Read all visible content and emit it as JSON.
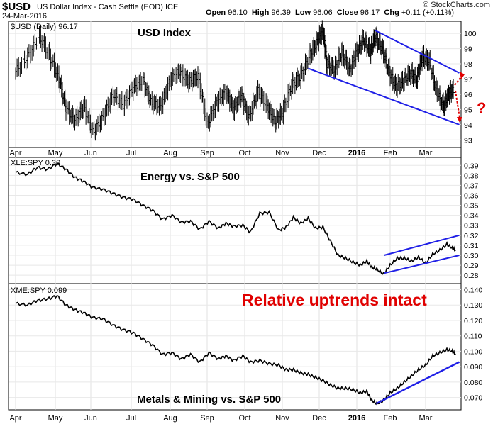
{
  "header": {
    "symbol": "$USD",
    "name": "US Dollar Index - Cash Settle (EOD) ICE",
    "date": "24-Mar-2016",
    "open_label": "Open",
    "open": "96.10",
    "high_label": "High",
    "high": "96.39",
    "low_label": "Low",
    "low": "96.06",
    "close_label": "Close",
    "close": "96.17",
    "chg_label": "Chg",
    "chg": "+0.11 (+0.11%)",
    "brand": "© StockCharts.com"
  },
  "x_labels": [
    "Apr",
    "May",
    "Jun",
    "Jul",
    "Aug",
    "Sep",
    "Oct",
    "Nov",
    "Dec",
    "2016",
    "Feb",
    "Mar"
  ],
  "chart_data": [
    {
      "type": "ohlc",
      "legend": "$USD (Daily) 96.17",
      "title": "USD Index",
      "ylim": [
        92.5,
        100.8
      ],
      "ticks": [
        "93",
        "94",
        "95",
        "96",
        "97",
        "98",
        "99",
        "100"
      ],
      "annotation": "?",
      "x_month_index": [
        0.0,
        0.3,
        0.6,
        0.85,
        1.1,
        1.3,
        1.55,
        1.8,
        2.05,
        2.3,
        2.55,
        2.8,
        3.05,
        3.3,
        3.5,
        3.75,
        4.0,
        4.25,
        4.5,
        4.75,
        5.0,
        5.25,
        5.5,
        5.7,
        5.9,
        6.1,
        6.35,
        6.6,
        6.8,
        7.0,
        7.25,
        7.5,
        7.75,
        7.95,
        8.1,
        8.2,
        8.4,
        8.6,
        8.8,
        9.0,
        9.2,
        9.4,
        9.55,
        9.75,
        9.95,
        10.15,
        10.35,
        10.55,
        10.75,
        10.9,
        11.1,
        11.3,
        11.5,
        11.65,
        11.8
      ],
      "close": [
        97.5,
        98.5,
        99.8,
        98.5,
        97.0,
        95.0,
        94.3,
        95.2,
        93.5,
        94.5,
        96.0,
        95.3,
        96.5,
        96.9,
        95.5,
        95.2,
        97.0,
        97.5,
        96.8,
        97.2,
        94.0,
        95.5,
        96.2,
        95.0,
        96.0,
        94.5,
        96.2,
        95.2,
        94.2,
        94.8,
        96.6,
        97.2,
        98.6,
        99.5,
        100.2,
        98.0,
        97.6,
        98.8,
        97.6,
        98.8,
        99.6,
        98.8,
        99.8,
        99.0,
        97.6,
        96.5,
        96.8,
        97.4,
        97.0,
        98.5,
        98.1,
        96.2,
        95.2,
        96.1,
        96.3
      ],
      "channel_upper": [
        [
          9.55,
          100.2
        ],
        [
          11.95,
          97.4
        ]
      ],
      "channel_lower": [
        [
          7.7,
          97.7
        ],
        [
          11.95,
          94.0
        ]
      ]
    },
    {
      "type": "line",
      "legend": "XLE:SPY 0.30",
      "title": "Energy vs. S&P 500",
      "ylim": [
        0.273,
        0.398
      ],
      "ticks": [
        "0.28",
        "0.29",
        "0.30",
        "0.31",
        "0.32",
        "0.33",
        "0.34",
        "0.35",
        "0.36",
        "0.37",
        "0.38",
        "0.39"
      ],
      "x_month_index": [
        0.0,
        0.3,
        0.55,
        0.8,
        1.05,
        1.3,
        1.55,
        1.8,
        2.05,
        2.3,
        2.55,
        2.8,
        3.05,
        3.3,
        3.55,
        3.8,
        4.05,
        4.3,
        4.55,
        4.8,
        5.05,
        5.3,
        5.5,
        5.7,
        5.95,
        6.15,
        6.4,
        6.65,
        6.9,
        7.1,
        7.3,
        7.5,
        7.7,
        7.9,
        8.1,
        8.3,
        8.5,
        8.7,
        8.9,
        9.1,
        9.3,
        9.45,
        9.6,
        9.8,
        10.0,
        10.2,
        10.4,
        10.6,
        10.8,
        11.0,
        11.2,
        11.4,
        11.6,
        11.75,
        11.85
      ],
      "values": [
        0.383,
        0.381,
        0.388,
        0.386,
        0.392,
        0.386,
        0.378,
        0.374,
        0.368,
        0.366,
        0.362,
        0.358,
        0.356,
        0.35,
        0.345,
        0.336,
        0.34,
        0.333,
        0.334,
        0.326,
        0.334,
        0.327,
        0.332,
        0.329,
        0.33,
        0.323,
        0.342,
        0.343,
        0.325,
        0.328,
        0.338,
        0.332,
        0.337,
        0.327,
        0.328,
        0.314,
        0.3,
        0.297,
        0.293,
        0.29,
        0.294,
        0.288,
        0.286,
        0.281,
        0.29,
        0.297,
        0.297,
        0.294,
        0.298,
        0.292,
        0.301,
        0.305,
        0.311,
        0.307,
        0.305
      ],
      "channel_upper": [
        [
          9.82,
          0.3
        ],
        [
          11.95,
          0.32
        ]
      ],
      "channel_lower": [
        [
          9.82,
          0.282
        ],
        [
          11.95,
          0.3
        ]
      ]
    },
    {
      "type": "line",
      "legend": "XME:SPY 0.099",
      "title": "Metals & Mining vs. S&P 500",
      "ylim": [
        0.062,
        0.143
      ],
      "ticks": [
        "0.070",
        "0.080",
        "0.090",
        "0.100",
        "0.110",
        "0.120",
        "0.130",
        "0.140"
      ],
      "annotation": "Relative uptrends intact",
      "x_month_index": [
        0.0,
        0.3,
        0.55,
        0.8,
        1.05,
        1.3,
        1.55,
        1.8,
        2.05,
        2.3,
        2.55,
        2.8,
        3.05,
        3.3,
        3.55,
        3.8,
        4.05,
        4.3,
        4.55,
        4.8,
        5.05,
        5.3,
        5.5,
        5.7,
        5.95,
        6.15,
        6.4,
        6.65,
        6.9,
        7.1,
        7.3,
        7.5,
        7.7,
        7.9,
        8.1,
        8.3,
        8.5,
        8.7,
        8.9,
        9.1,
        9.3,
        9.45,
        9.6,
        9.8,
        10.0,
        10.2,
        10.4,
        10.6,
        10.8,
        11.0,
        11.2,
        11.4,
        11.6,
        11.75,
        11.85
      ],
      "values": [
        0.131,
        0.13,
        0.133,
        0.134,
        0.136,
        0.13,
        0.127,
        0.125,
        0.122,
        0.121,
        0.117,
        0.114,
        0.112,
        0.108,
        0.104,
        0.098,
        0.099,
        0.095,
        0.098,
        0.093,
        0.099,
        0.095,
        0.097,
        0.094,
        0.097,
        0.093,
        0.094,
        0.092,
        0.091,
        0.088,
        0.088,
        0.086,
        0.085,
        0.083,
        0.081,
        0.078,
        0.076,
        0.076,
        0.075,
        0.073,
        0.074,
        0.068,
        0.066,
        0.068,
        0.073,
        0.076,
        0.08,
        0.084,
        0.088,
        0.091,
        0.097,
        0.099,
        0.101,
        0.1,
        0.098
      ],
      "trendline": [
        [
          9.58,
          0.066
        ],
        [
          11.95,
          0.093
        ]
      ]
    }
  ]
}
